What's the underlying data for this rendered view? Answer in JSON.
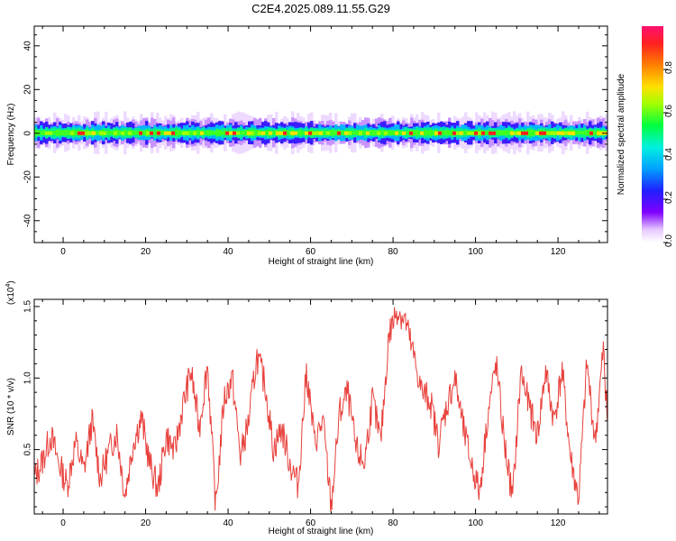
{
  "title": "C2E4.2025.089.11.55.G29",
  "chart_data": [
    {
      "type": "heatmap",
      "xlabel": "Height of straight line (km)",
      "ylabel": "Frequency (Hz)",
      "xlim": [
        -7,
        132
      ],
      "ylim": [
        -50,
        49
      ],
      "xticks": [
        0,
        20,
        40,
        60,
        80,
        100,
        120
      ],
      "yticks": [
        -40,
        -20,
        0,
        20,
        40
      ],
      "colorbar": {
        "label": "Normalized spectral amplitude",
        "range": [
          0.0,
          1.0
        ],
        "ticks": [
          "0.0",
          "0.2",
          "0.4",
          "0.6",
          "0.8"
        ]
      }
    },
    {
      "type": "line",
      "xlabel": "Height of straight line (km)",
      "ylabel": "SNR (10 * v/v)",
      "multiplier": "(x10",
      "multiplier_exp": "4",
      "multiplier_close": ")",
      "xlim": [
        -7,
        132
      ],
      "ylim": [
        0.05,
        1.55
      ],
      "xticks": [
        0,
        20,
        40,
        60,
        80,
        100,
        120
      ],
      "yticks": [
        "0.5",
        "1.0",
        "1.5"
      ],
      "color": "#e8413c",
      "series": [
        {
          "x": [
            -7,
            -5,
            -3,
            -1,
            1,
            3,
            5,
            7,
            9,
            11,
            13,
            15,
            17,
            19,
            21,
            23,
            25,
            27,
            29,
            31,
            33,
            35,
            37,
            39,
            41,
            43,
            45,
            47,
            49,
            51,
            53,
            55,
            57,
            59,
            61,
            63,
            65,
            67,
            69,
            71,
            73,
            75,
            77,
            79,
            81,
            83,
            85,
            87,
            89,
            91,
            93,
            95,
            97,
            99,
            101,
            103,
            105,
            107,
            109,
            111,
            113,
            115,
            117,
            119,
            121,
            123,
            125,
            127,
            129,
            131,
            132
          ],
          "y": [
            0.3,
            0.42,
            0.6,
            0.4,
            0.25,
            0.55,
            0.35,
            0.7,
            0.3,
            0.48,
            0.62,
            0.18,
            0.55,
            0.72,
            0.4,
            0.22,
            0.6,
            0.48,
            0.8,
            1.05,
            0.65,
            1.1,
            0.1,
            0.85,
            1.0,
            0.45,
            0.7,
            1.15,
            0.95,
            0.5,
            0.65,
            0.4,
            0.25,
            1.05,
            0.55,
            0.7,
            0.1,
            0.75,
            0.9,
            0.5,
            0.4,
            0.85,
            0.55,
            1.3,
            1.48,
            1.4,
            1.15,
            0.9,
            0.85,
            0.55,
            0.8,
            1.0,
            0.65,
            0.4,
            0.2,
            0.75,
            1.1,
            0.55,
            0.15,
            1.05,
            0.8,
            0.6,
            1.05,
            0.7,
            1.05,
            0.45,
            0.15,
            1.1,
            0.55,
            1.2,
            0.7
          ]
        }
      ]
    }
  ]
}
